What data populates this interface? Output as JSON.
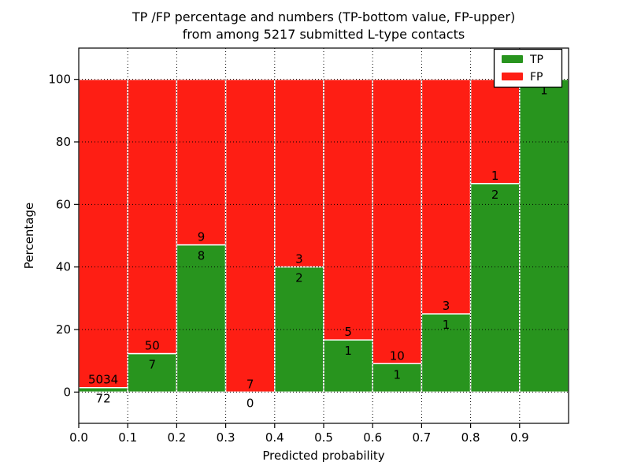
{
  "title": {
    "line1": "TP /FP percentage and numbers (TP-bottom value, FP-upper)",
    "line2": "from among 5217 submitted L-type contacts"
  },
  "colors": {
    "tp": "#28941e",
    "fp": "#fe1e14",
    "grid": "#000000",
    "text": "#000000",
    "bar_edge": "#ffffff",
    "background": "#ffffff",
    "legend_border": "#000000"
  },
  "legend": {
    "position": "upper right",
    "items": [
      {
        "label": "TP",
        "color_key": "tp"
      },
      {
        "label": "FP",
        "color_key": "fp"
      }
    ]
  },
  "chart_data": {
    "type": "bar",
    "stacked": true,
    "normalized_to_percent": true,
    "title": "TP /FP percentage and numbers (TP-bottom value, FP-upper) from among 5217 submitted L-type contacts",
    "xlabel": "Predicted probability",
    "ylabel": "Percentage",
    "xlim": [
      0.0,
      1.0
    ],
    "ylim": [
      -10,
      110
    ],
    "x_tick_labels": [
      "0.0",
      "0.1",
      "0.2",
      "0.3",
      "0.4",
      "0.5",
      "0.6",
      "0.7",
      "0.8",
      "0.9"
    ],
    "y_tick_values": [
      0,
      20,
      40,
      60,
      80,
      100
    ],
    "grid": "dotted",
    "legend_position": "upper right",
    "series": [
      {
        "name": "TP",
        "color": "#28941e",
        "position": "bottom"
      },
      {
        "name": "FP",
        "color": "#fe1e14",
        "position": "top"
      }
    ],
    "total_contacts": 5217,
    "bins": [
      {
        "range": [
          0.0,
          0.1
        ],
        "tp": 72,
        "fp": 5034,
        "tp_pct": 1.41
      },
      {
        "range": [
          0.1,
          0.2
        ],
        "tp": 7,
        "fp": 50,
        "tp_pct": 12.28
      },
      {
        "range": [
          0.2,
          0.3
        ],
        "tp": 8,
        "fp": 9,
        "tp_pct": 47.06
      },
      {
        "range": [
          0.3,
          0.4
        ],
        "tp": 0,
        "fp": 7,
        "tp_pct": 0.0
      },
      {
        "range": [
          0.4,
          0.5
        ],
        "tp": 2,
        "fp": 3,
        "tp_pct": 40.0
      },
      {
        "range": [
          0.5,
          0.6
        ],
        "tp": 1,
        "fp": 5,
        "tp_pct": 16.67
      },
      {
        "range": [
          0.6,
          0.7
        ],
        "tp": 1,
        "fp": 10,
        "tp_pct": 9.09
      },
      {
        "range": [
          0.7,
          0.8
        ],
        "tp": 1,
        "fp": 3,
        "tp_pct": 25.0
      },
      {
        "range": [
          0.8,
          0.9
        ],
        "tp": 2,
        "fp": 1,
        "tp_pct": 66.67
      },
      {
        "range": [
          0.9,
          1.0
        ],
        "tp": 1,
        "fp": 0,
        "tp_pct": 100.0
      }
    ]
  }
}
